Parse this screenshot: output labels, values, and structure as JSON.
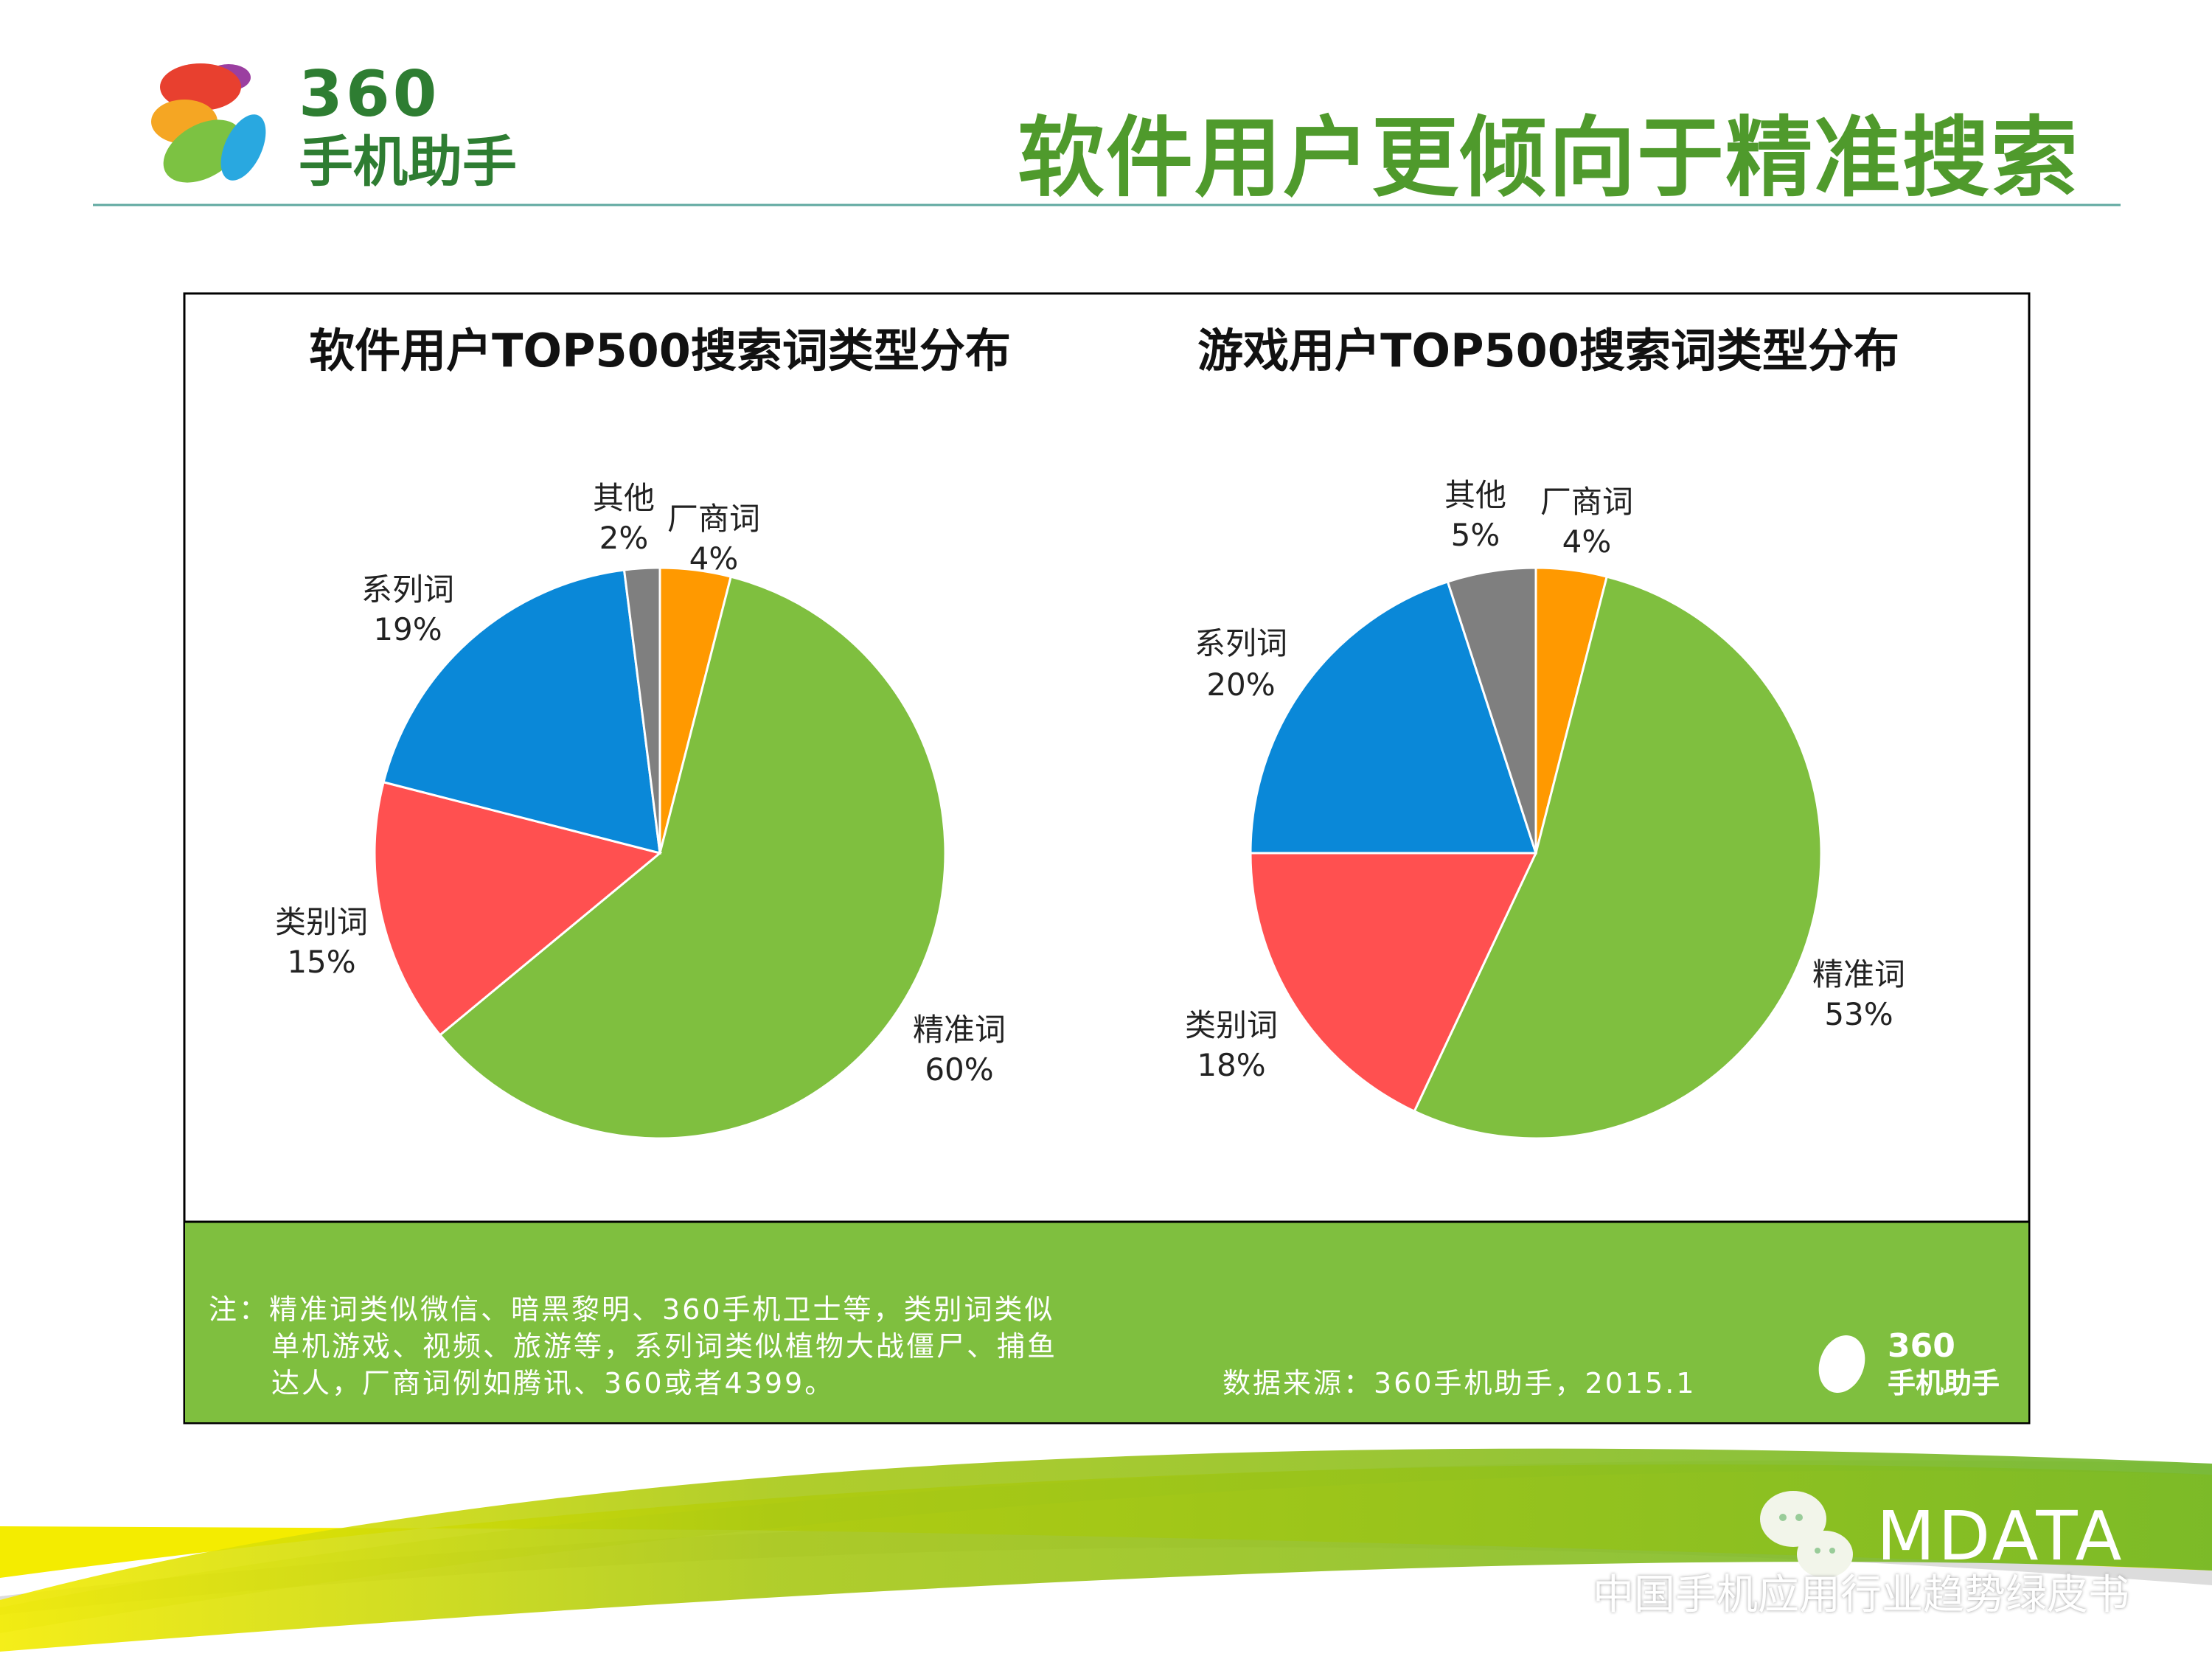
{
  "header": {
    "logo_number": "360",
    "logo_text": "手机助手",
    "title": "软件用户更倾向于精准搜索"
  },
  "colors": {
    "厂商词": "#FF9900",
    "精准词": "#7FBF3F",
    "类别词": "#FF5050",
    "系列词": "#0A88D8",
    "其他": "#7F7F7F",
    "accent_green": "#7FBF3F"
  },
  "chart_data": [
    {
      "type": "pie",
      "title": "软件用户TOP500搜索词类型分布",
      "slices": [
        {
          "label": "厂商词",
          "value": 4,
          "text": "4%"
        },
        {
          "label": "精准词",
          "value": 60,
          "text": "60%"
        },
        {
          "label": "类别词",
          "value": 15,
          "text": "15%"
        },
        {
          "label": "系列词",
          "value": 19,
          "text": "19%"
        },
        {
          "label": "其他",
          "value": 2,
          "text": "2%"
        }
      ]
    },
    {
      "type": "pie",
      "title": "游戏用户TOP500搜索词类型分布",
      "slices": [
        {
          "label": "厂商词",
          "value": 4,
          "text": "4%"
        },
        {
          "label": "精准词",
          "value": 53,
          "text": "53%"
        },
        {
          "label": "类别词",
          "value": 18,
          "text": "18%"
        },
        {
          "label": "系列词",
          "value": 20,
          "text": "20%"
        },
        {
          "label": "其他",
          "value": 5,
          "text": "5%"
        }
      ]
    }
  ],
  "footer": {
    "note_lines": [
      "注：精准词类似微信、暗黑黎明、360手机卫士等，类别词类似",
      "单机游戏、视频、旅游等，系列词类似植物大战僵尸、捕鱼",
      "达人，厂商词例如腾讯、360或者4399。"
    ],
    "source": "数据来源：360手机助手，2015.1",
    "logo_number": "360",
    "logo_text": "手机助手"
  },
  "brand": {
    "name": "MDATA",
    "subtitle": "中国手机应用行业趋势绿皮书"
  }
}
